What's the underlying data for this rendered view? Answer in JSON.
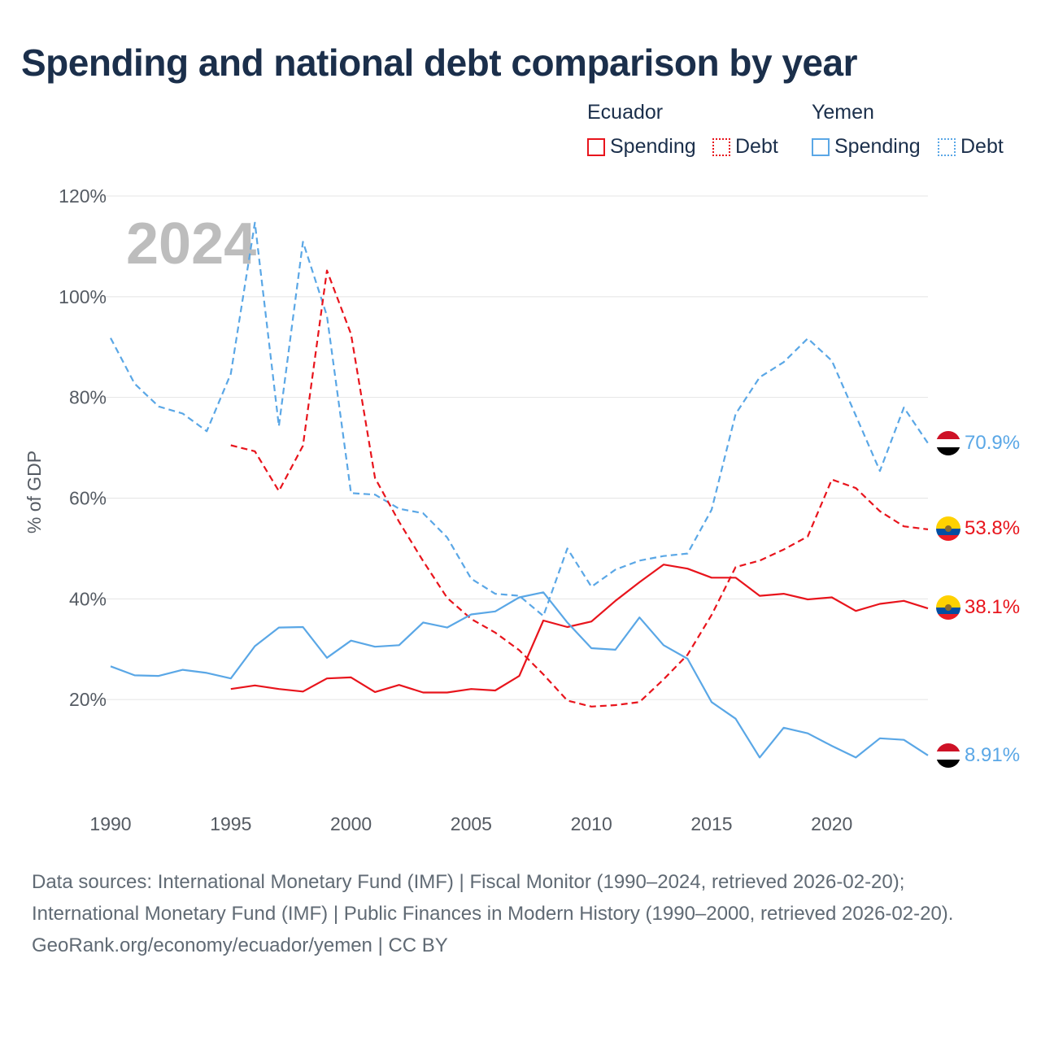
{
  "title": "Spending and national debt comparison by year",
  "legend": {
    "groups": [
      {
        "name": "Ecuador",
        "color": "#e8141c",
        "items": [
          {
            "label": "Spending",
            "style": "solid"
          },
          {
            "label": "Debt",
            "style": "dotted"
          }
        ]
      },
      {
        "name": "Yemen",
        "color": "#5aa7e6",
        "items": [
          {
            "label": "Spending",
            "style": "solid"
          },
          {
            "label": "Debt",
            "style": "dotted"
          }
        ]
      }
    ]
  },
  "watermark_year": "2024",
  "footer": {
    "sources": "Data sources: International Monetary Fund (IMF) | Fiscal Monitor (1990–2024, retrieved 2026-02-20); International Monetary Fund (IMF) | Public Finances in Modern History (1990–2000, retrieved 2026-02-20).",
    "credit": "GeoRank.org/economy/ecuador/yemen | CC BY"
  },
  "chart_data": {
    "type": "line",
    "title": "Spending and national debt comparison by year",
    "xlabel": "",
    "ylabel": "% of GDP",
    "xlim": [
      1990,
      2024
    ],
    "ylim": [
      0,
      120
    ],
    "x_ticks": [
      1990,
      1995,
      2000,
      2005,
      2010,
      2015,
      2020
    ],
    "y_ticks": [
      20,
      40,
      60,
      80,
      100,
      120
    ],
    "y_tick_labels": [
      "20%",
      "40%",
      "60%",
      "80%",
      "100%",
      "120%"
    ],
    "grid": true,
    "series": [
      {
        "name": "Yemen Debt",
        "country": "Yemen",
        "metric": "Debt",
        "color": "#5aa7e6",
        "style": "dashed",
        "x": [
          1990,
          1991,
          1992,
          1993,
          1994,
          1995,
          1996,
          1997,
          1998,
          1999,
          2000,
          2001,
          2002,
          2003,
          2004,
          2005,
          2006,
          2007,
          2008,
          2009,
          2010,
          2011,
          2012,
          2013,
          2014,
          2015,
          2016,
          2017,
          2018,
          2019,
          2020,
          2021,
          2022,
          2023,
          2024
        ],
        "values": [
          91.8,
          82.7,
          78.2,
          76.8,
          73.3,
          84.7,
          114.7,
          74.3,
          110.9,
          96.2,
          61.0,
          60.7,
          57.9,
          57.0,
          52.2,
          44.0,
          41.0,
          40.6,
          36.6,
          50.0,
          42.4,
          45.8,
          47.6,
          48.5,
          49.0,
          57.7,
          76.7,
          84.0,
          87.0,
          91.7,
          87.3,
          76.4,
          65.4,
          78.0,
          70.9
        ],
        "end_label": "70.9%"
      },
      {
        "name": "Ecuador Debt",
        "country": "Ecuador",
        "metric": "Debt",
        "color": "#e8141c",
        "style": "dashed",
        "x": [
          1995,
          1996,
          1997,
          1998,
          1999,
          2000,
          2001,
          2002,
          2003,
          2004,
          2005,
          2006,
          2007,
          2008,
          2009,
          2010,
          2011,
          2012,
          2013,
          2014,
          2015,
          2016,
          2017,
          2018,
          2019,
          2020,
          2021,
          2022,
          2023,
          2024
        ],
        "values": [
          70.5,
          69.3,
          61.4,
          70.4,
          105.2,
          92.6,
          64.0,
          55.3,
          47.5,
          40.2,
          36.0,
          33.3,
          29.8,
          25.0,
          19.8,
          18.6,
          18.9,
          19.5,
          24.0,
          28.9,
          36.8,
          46.3,
          47.6,
          49.8,
          52.4,
          63.7,
          62.0,
          57.4,
          54.4,
          53.8
        ],
        "end_label": "53.8%"
      },
      {
        "name": "Ecuador Spending",
        "country": "Ecuador",
        "metric": "Spending",
        "color": "#e8141c",
        "style": "solid",
        "x": [
          1995,
          1996,
          1997,
          1998,
          1999,
          2000,
          2001,
          2002,
          2003,
          2004,
          2005,
          2006,
          2007,
          2008,
          2009,
          2010,
          2011,
          2012,
          2013,
          2014,
          2015,
          2016,
          2017,
          2018,
          2019,
          2020,
          2021,
          2022,
          2023,
          2024
        ],
        "values": [
          22.1,
          22.8,
          22.1,
          21.6,
          24.2,
          24.4,
          21.5,
          22.9,
          21.4,
          21.4,
          22.1,
          21.8,
          24.7,
          35.7,
          34.4,
          35.5,
          39.6,
          43.3,
          46.8,
          46.0,
          44.2,
          44.2,
          40.6,
          41.0,
          39.9,
          40.3,
          37.6,
          39.0,
          39.6,
          38.1
        ],
        "end_label": "38.1%"
      },
      {
        "name": "Yemen Spending",
        "country": "Yemen",
        "metric": "Spending",
        "color": "#5aa7e6",
        "style": "solid",
        "x": [
          1990,
          1991,
          1992,
          1993,
          1994,
          1995,
          1996,
          1997,
          1998,
          1999,
          2000,
          2001,
          2002,
          2003,
          2004,
          2005,
          2006,
          2007,
          2008,
          2009,
          2010,
          2011,
          2012,
          2013,
          2014,
          2015,
          2016,
          2017,
          2018,
          2019,
          2020,
          2021,
          2022,
          2023,
          2024
        ],
        "values": [
          26.6,
          24.8,
          24.7,
          25.9,
          25.3,
          24.2,
          30.6,
          34.3,
          34.4,
          28.3,
          31.7,
          30.5,
          30.8,
          35.3,
          34.3,
          36.9,
          37.5,
          40.3,
          41.3,
          35.3,
          30.2,
          29.9,
          36.3,
          30.8,
          28.1,
          19.5,
          16.2,
          8.5,
          14.4,
          13.3,
          10.8,
          8.5,
          12.3,
          12.0,
          8.91
        ],
        "end_label": "8.91%"
      }
    ]
  }
}
